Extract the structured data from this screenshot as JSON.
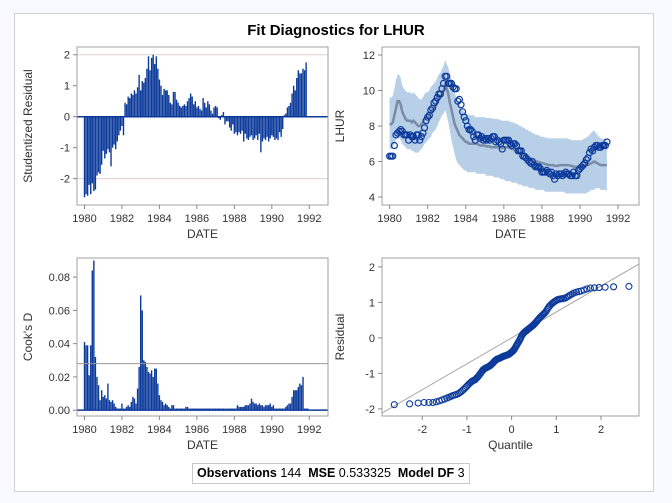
{
  "title": "Fit Diagnostics for LHUR",
  "stats": {
    "obs_label": "Observations",
    "obs_value": "144",
    "mse_label": "MSE",
    "mse_value": "0.533325",
    "df_label": "Model DF",
    "df_value": "3"
  },
  "colors": {
    "bar": "#0c3a9b",
    "marker": "#0c3a9b",
    "band": "#b8cfe8",
    "fitline": "#6f7f99",
    "refline": "#e0cfcf",
    "ref_gray": "#9a9a9a",
    "qqline": "#a8a8a8"
  },
  "chart_data": [
    {
      "type": "bar",
      "title": "Studentized Residual vs DATE",
      "xlabel": "DATE",
      "ylabel": "Studentized Residual",
      "xlim": [
        1979.6,
        1993.0
      ],
      "ylim": [
        -2.85,
        2.25
      ],
      "xticks": [
        1980,
        1982,
        1984,
        1986,
        1988,
        1990,
        1992
      ],
      "yticks": [
        -2,
        -1,
        0,
        1,
        2
      ],
      "reference_lines": [
        -2,
        2
      ],
      "x_start": 1980.0,
      "x_step": 0.08333,
      "values": [
        -2.6,
        -2.5,
        -2.55,
        -2.2,
        -2.5,
        -2.15,
        -2.4,
        -2.35,
        -1.9,
        -1.8,
        -1.85,
        -1.55,
        -1.1,
        -1.35,
        -1.2,
        -1.05,
        -1.15,
        -1.6,
        -1.0,
        -0.9,
        -1.05,
        -0.8,
        -0.6,
        -0.45,
        -0.3,
        -0.6,
        0.45,
        0.4,
        0.65,
        0.6,
        0.75,
        0.7,
        0.85,
        0.75,
        0.95,
        1.35,
        0.85,
        1.15,
        1.1,
        1.25,
        1.55,
        1.95,
        1.5,
        1.9,
        2.0,
        1.7,
        1.95,
        1.55,
        1.2,
        1.0,
        0.7,
        0.9,
        0.85,
        0.85,
        0.7,
        0.45,
        0.4,
        0.8,
        0.8,
        0.55,
        0.45,
        0.35,
        0.3,
        0.35,
        0.4,
        0.35,
        0.5,
        0.6,
        0.75,
        0.65,
        0.4,
        0.5,
        0.3,
        0.35,
        0.25,
        0.2,
        0.6,
        0.45,
        0.3,
        0.5,
        0.4,
        0.2,
        0.1,
        0.3,
        0.35,
        0.3,
        -0.05,
        -0.1,
        0.05,
        0.15,
        -0.25,
        -0.15,
        -0.15,
        -0.35,
        -0.45,
        -0.25,
        -0.55,
        -0.5,
        -0.6,
        -0.5,
        -0.55,
        -0.45,
        -0.8,
        -0.55,
        -0.7,
        -0.75,
        -0.65,
        -0.6,
        -0.75,
        -0.7,
        -0.6,
        -0.75,
        -0.55,
        -1.15,
        -0.8,
        -0.7,
        -0.75,
        -0.65,
        -0.8,
        -0.7,
        -0.6,
        -0.65,
        -0.75,
        -0.7,
        -0.75,
        -0.5,
        -0.65,
        -0.4,
        0.05,
        0.1,
        0.3,
        0.35,
        0.45,
        0.75,
        1.0,
        0.85,
        1.25,
        1.5,
        1.4,
        1.4,
        1.55,
        1.5,
        1.75
      ]
    },
    {
      "type": "scatter",
      "title": "LHUR vs DATE with fit and confidence band",
      "xlabel": "DATE",
      "ylabel": "LHUR",
      "xlim": [
        1979.6,
        1993.1
      ],
      "ylim": [
        3.55,
        12.45
      ],
      "xticks": [
        1980,
        1982,
        1984,
        1986,
        1988,
        1990,
        1992
      ],
      "yticks": [
        4,
        6,
        8,
        10,
        12
      ],
      "x_start": 1980.0,
      "x_step": 0.08333,
      "observed": [
        6.3,
        6.3,
        6.3,
        6.9,
        7.5,
        7.6,
        7.7,
        7.8,
        7.7,
        7.5,
        7.5,
        7.5,
        7.2,
        7.5,
        7.4,
        7.4,
        7.2,
        7.5,
        7.5,
        7.2,
        7.4,
        7.6,
        7.9,
        8.3,
        8.5,
        8.6,
        8.9,
        9.0,
        9.3,
        9.4,
        9.6,
        9.8,
        9.8,
        10.1,
        10.4,
        10.8,
        10.8,
        10.4,
        10.4,
        10.4,
        10.2,
        10.1,
        10.1,
        9.4,
        9.5,
        9.2,
        8.8,
        8.5,
        8.3,
        8.0,
        7.8,
        7.8,
        7.7,
        7.4,
        7.2,
        7.5,
        7.5,
        7.3,
        7.4,
        7.2,
        7.3,
        7.2,
        7.3,
        7.2,
        7.3,
        7.4,
        7.4,
        7.1,
        7.2,
        7.1,
        7.0,
        6.7,
        7.2,
        7.2,
        7.2,
        7.2,
        7.0,
        6.9,
        7.0,
        7.0,
        6.9,
        6.6,
        6.6,
        6.6,
        6.3,
        6.3,
        6.2,
        6.1,
        6.0,
        5.9,
        6.0,
        5.8,
        5.7,
        5.7,
        5.7,
        5.6,
        5.4,
        5.4,
        5.4,
        5.5,
        5.4,
        5.3,
        5.4,
        5.2,
        5.0,
        5.3,
        5.2,
        5.3,
        5.3,
        5.2,
        5.3,
        5.4,
        5.3,
        5.3,
        5.2,
        5.2,
        5.4,
        5.2,
        5.2,
        5.5,
        5.6,
        5.7,
        5.8,
        5.9,
        6.1,
        6.2,
        6.5,
        6.7,
        6.6,
        6.8,
        6.9,
        6.9,
        6.8,
        6.8,
        6.9,
        6.9,
        6.9,
        7.1
      ],
      "fit": [
        8.1,
        8.1,
        8.2,
        8.6,
        9.0,
        9.4,
        9.4,
        9.2,
        8.8,
        8.6,
        8.4,
        8.3,
        8.3,
        8.3,
        8.2,
        8.3,
        8.2,
        8.1,
        8.0,
        8.0,
        8.1,
        8.2,
        8.4,
        8.5,
        8.5,
        8.6,
        8.8,
        8.9,
        9.0,
        9.1,
        9.3,
        9.5,
        9.6,
        9.8,
        10.0,
        10.3,
        10.1,
        9.8,
        9.3,
        8.9,
        8.5,
        8.1,
        7.9,
        7.7,
        7.5,
        7.4,
        7.3,
        7.2,
        7.1,
        7.1,
        7.0,
        7.0,
        7.0,
        7.0,
        7.0,
        7.0,
        6.95,
        6.9,
        6.9,
        6.9,
        6.9,
        6.85,
        6.85,
        6.85,
        6.8,
        6.8,
        6.8,
        6.8,
        6.8,
        6.8,
        6.8,
        6.75,
        6.8,
        6.8,
        6.8,
        6.8,
        6.75,
        6.7,
        6.7,
        6.65,
        6.6,
        6.55,
        6.5,
        6.45,
        6.4,
        6.35,
        6.3,
        6.25,
        6.2,
        6.15,
        6.1,
        6.05,
        6.0,
        6.0,
        5.95,
        5.95,
        5.9,
        5.9,
        5.85,
        5.85,
        5.8,
        5.8,
        5.8,
        5.8,
        5.75,
        5.75,
        5.75,
        5.8,
        5.8,
        5.8,
        5.8,
        5.8,
        5.8,
        5.8,
        5.75,
        5.75,
        5.7,
        5.7,
        5.7,
        5.7,
        5.7,
        5.7,
        5.7,
        5.75,
        5.8,
        5.8,
        5.85,
        5.9,
        5.95,
        6.0,
        5.95,
        5.9,
        5.85,
        5.8,
        5.8,
        5.8,
        5.8,
        5.8
      ],
      "band_lower": [
        6.7,
        6.7,
        6.8,
        7.0,
        7.2,
        7.3,
        7.3,
        7.2,
        7.0,
        6.9,
        6.8,
        6.7,
        6.7,
        6.7,
        6.6,
        6.6,
        6.5,
        6.5,
        6.5,
        6.6,
        6.7,
        6.8,
        7.0,
        7.1,
        7.2,
        7.3,
        7.4,
        7.6,
        7.7,
        7.8,
        8.0,
        8.2,
        8.4,
        8.6,
        8.7,
        8.9,
        8.6,
        8.2,
        7.7,
        7.2,
        6.8,
        6.4,
        6.1,
        5.9,
        5.8,
        5.7,
        5.6,
        5.5,
        5.5,
        5.4,
        5.4,
        5.4,
        5.4,
        5.4,
        5.4,
        5.3,
        5.3,
        5.3,
        5.3,
        5.3,
        5.3,
        5.2,
        5.2,
        5.2,
        5.2,
        5.2,
        5.1,
        5.1,
        5.1,
        5.1,
        5.0,
        5.0,
        5.0,
        4.9,
        4.9,
        4.9,
        4.9,
        4.8,
        4.8,
        4.8,
        4.8,
        4.7,
        4.7,
        4.7,
        4.6,
        4.6,
        4.6,
        4.6,
        4.5,
        4.5,
        4.5,
        4.5,
        4.4,
        4.4,
        4.4,
        4.4,
        4.4,
        4.4,
        4.3,
        4.3,
        4.3,
        4.3,
        4.3,
        4.3,
        4.3,
        4.3,
        4.3,
        4.3,
        4.3,
        4.3,
        4.3,
        4.2,
        4.2,
        4.2,
        4.2,
        4.2,
        4.2,
        4.2,
        4.2,
        4.2,
        4.2,
        4.2,
        4.2,
        4.2,
        4.2,
        4.3,
        4.3,
        4.4,
        4.4,
        4.4,
        4.5,
        4.5,
        4.5,
        4.4,
        4.4,
        4.4,
        4.4,
        4.35,
        4.35,
        4.35
      ],
      "band_upper": [
        9.6,
        9.6,
        9.7,
        10.1,
        10.6,
        10.9,
        10.9,
        10.7,
        10.3,
        10.1,
        10.0,
        9.9,
        9.9,
        9.9,
        9.8,
        9.9,
        9.8,
        9.7,
        9.6,
        9.5,
        9.5,
        9.6,
        9.8,
        9.9,
        9.9,
        10.0,
        10.2,
        10.3,
        10.4,
        10.5,
        10.7,
        10.9,
        11.0,
        11.2,
        11.4,
        11.7,
        11.5,
        11.3,
        10.9,
        10.6,
        10.2,
        9.9,
        9.6,
        9.4,
        9.2,
        9.0,
        8.9,
        8.8,
        8.7,
        8.7,
        8.6,
        8.6,
        8.6,
        8.6,
        8.5,
        8.5,
        8.5,
        8.5,
        8.5,
        8.5,
        8.5,
        8.45,
        8.45,
        8.45,
        8.45,
        8.4,
        8.4,
        8.4,
        8.4,
        8.35,
        8.35,
        8.3,
        8.3,
        8.3,
        8.3,
        8.3,
        8.25,
        8.2,
        8.2,
        8.15,
        8.1,
        8.1,
        8.0,
        8.0,
        7.9,
        7.9,
        7.8,
        7.8,
        7.7,
        7.7,
        7.6,
        7.6,
        7.5,
        7.5,
        7.5,
        7.4,
        7.4,
        7.4,
        7.35,
        7.35,
        7.3,
        7.3,
        7.3,
        7.3,
        7.3,
        7.3,
        7.3,
        7.3,
        7.3,
        7.3,
        7.3,
        7.3,
        7.3,
        7.25,
        7.25,
        7.2,
        7.2,
        7.2,
        7.2,
        7.2,
        7.2,
        7.2,
        7.25,
        7.3,
        7.35,
        7.4,
        7.5,
        7.6,
        7.7,
        7.75,
        7.6,
        7.5,
        7.4,
        7.3,
        7.3,
        7.25,
        7.25,
        7.25
      ]
    },
    {
      "type": "bar",
      "title": "Cook's D vs DATE",
      "xlabel": "DATE",
      "ylabel": "Cook's D",
      "xlim": [
        1979.6,
        1993.0
      ],
      "ylim": [
        -0.0035,
        0.0915
      ],
      "xticks": [
        1980,
        1982,
        1984,
        1986,
        1988,
        1990,
        1992
      ],
      "yticks": [
        0.0,
        0.02,
        0.04,
        0.06,
        0.08
      ],
      "ytick_labels": [
        "0.00",
        "0.02",
        "0.04",
        "0.06",
        "0.08"
      ],
      "threshold": 0.028,
      "x_start": 1980.0,
      "x_step": 0.08333,
      "values": [
        0.041,
        0.039,
        0.039,
        0.021,
        0.039,
        0.084,
        0.09,
        0.032,
        0.02,
        0.015,
        0.006,
        0.012,
        0.008,
        0.009,
        0.007,
        0.016,
        0.006,
        0.005,
        0.006,
        0.004,
        0.002,
        0.001,
        0.001,
        0.001,
        0.004,
        0.001,
        0.001,
        0.002,
        0.003,
        0.002,
        0.005,
        0.008,
        0.007,
        0.004,
        0.013,
        0.026,
        0.069,
        0.06,
        0.03,
        0.029,
        0.026,
        0.023,
        0.022,
        0.024,
        0.02,
        0.025,
        0.025,
        0.016,
        0.009,
        0.006,
        0.005,
        0.003,
        0.004,
        0.003,
        0.002,
        0.001,
        0.003,
        0.003,
        0.001,
        0.001,
        0.001,
        0.001,
        0.001,
        0.001,
        0.001,
        0.002,
        0.002,
        0.001,
        0.001,
        0.001,
        0.001,
        0.001,
        0.001,
        0.001,
        0.001,
        0.001,
        0.001,
        0.001,
        0.001,
        0.001,
        0.001,
        0.001,
        0.001,
        0.001,
        0.001,
        0.001,
        0.001,
        0.001,
        0.001,
        0.001,
        0.001,
        0.001,
        0.001,
        0.001,
        0.001,
        0.001,
        0.001,
        0.001,
        0.003,
        0.002,
        0.002,
        0.002,
        0.002,
        0.003,
        0.003,
        0.003,
        0.004,
        0.007,
        0.005,
        0.004,
        0.004,
        0.003,
        0.004,
        0.003,
        0.003,
        0.002,
        0.003,
        0.003,
        0.003,
        0.004,
        0.002,
        0.003,
        0.001,
        0.001,
        0.001,
        0.001,
        0.001,
        0.001,
        0.001,
        0.002,
        0.003,
        0.004,
        0.004,
        0.008,
        0.012,
        0.012,
        0.012,
        0.014,
        0.016,
        0.015,
        0.02,
        0.001,
        0.001,
        0.001
      ]
    },
    {
      "type": "scatter",
      "title": "Residual Q-Q plot",
      "xlabel": "Quantile",
      "ylabel": "Residual",
      "xlim": [
        -2.9,
        2.85
      ],
      "ylim": [
        -2.2,
        2.25
      ],
      "xticks": [
        -2,
        -1,
        0,
        1,
        2
      ],
      "yticks": [
        -2,
        -1,
        0,
        1,
        2
      ],
      "reference_line": {
        "intercept": 0.0,
        "slope": 0.73
      },
      "n_points": 144,
      "sorted_residuals_sample": [
        -1.88,
        -1.82,
        -1.82,
        -1.75,
        -1.68,
        -1.62,
        -1.58,
        -1.5,
        -1.4,
        -1.3,
        -1.22,
        -1.18,
        -1.1,
        -1.0,
        -0.9,
        -0.85,
        -0.82,
        -0.78,
        -0.72,
        -0.65,
        -0.6,
        -0.58,
        -0.55,
        -0.52,
        -0.5,
        -0.48,
        -0.45,
        -0.4,
        -0.35,
        -0.25,
        -0.15,
        -0.05,
        0.08,
        0.15,
        0.2,
        0.25,
        0.3,
        0.35,
        0.42,
        0.5,
        0.58,
        0.65,
        0.72,
        0.85,
        0.95,
        1.02,
        1.08,
        1.1,
        1.12,
        1.2,
        1.28,
        1.32,
        1.4,
        1.42,
        1.45
      ]
    }
  ]
}
